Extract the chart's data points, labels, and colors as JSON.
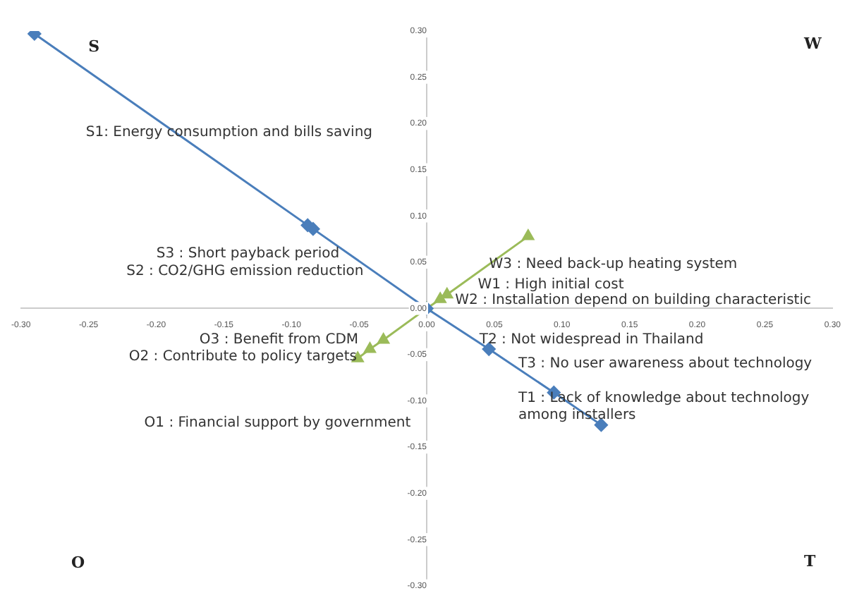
{
  "chart_data": {
    "type": "scatter",
    "series": [
      {
        "type": "line",
        "color": "#4a7ebb",
        "marker": "diamond",
        "x": [
          -0.29,
          -0.088,
          -0.084,
          0,
          0.046,
          0.094,
          0.129
        ],
        "values": [
          0.297,
          0.09,
          0.086,
          0,
          -0.044,
          -0.091,
          -0.126
        ]
      },
      {
        "type": "line",
        "color": "#9bbb59",
        "marker": "triangle",
        "x": [
          -0.051,
          -0.042,
          -0.032,
          0,
          0.01,
          0.015,
          0.075
        ],
        "values": [
          -0.054,
          -0.044,
          -0.034,
          0,
          0.01,
          0.015,
          0.078
        ]
      }
    ],
    "xlim": [
      -0.3,
      0.3
    ],
    "xticks": [
      {
        "value": -0.3,
        "label": "-0.30"
      },
      {
        "value": -0.25,
        "label": "-0.25"
      },
      {
        "value": -0.2,
        "label": "-0.20"
      },
      {
        "value": -0.15,
        "label": "-0.15"
      },
      {
        "value": -0.1,
        "label": "-0.10"
      },
      {
        "value": -0.05,
        "label": "-0.05"
      },
      {
        "value": 0,
        "label": "0.00"
      },
      {
        "value": 0.05,
        "label": "0.05"
      },
      {
        "value": 0.1,
        "label": "0.10"
      },
      {
        "value": 0.15,
        "label": "0.15"
      },
      {
        "value": 0.2,
        "label": "0.20"
      },
      {
        "value": 0.25,
        "label": "0.25"
      },
      {
        "value": 0.3,
        "label": "0.30"
      }
    ],
    "ylim": [
      -0.3,
      0.3
    ],
    "yticks": [
      {
        "value": -0.3,
        "label": "-0.30"
      },
      {
        "value": -0.25,
        "label": "-0.25"
      },
      {
        "value": -0.2,
        "label": "-0.20"
      },
      {
        "value": -0.15,
        "label": "-0.15"
      },
      {
        "value": -0.1,
        "label": "-0.10"
      },
      {
        "value": -0.05,
        "label": "-0.05"
      },
      {
        "value": 0,
        "label": "0.00"
      },
      {
        "value": 0.05,
        "label": "0.05"
      },
      {
        "value": 0.1,
        "label": "0.10"
      },
      {
        "value": 0.15,
        "label": "0.15"
      },
      {
        "value": 0.2,
        "label": "0.20"
      },
      {
        "value": 0.25,
        "label": "0.25"
      },
      {
        "value": 0.3,
        "label": "0.30"
      }
    ],
    "annotations": [
      "S",
      "W",
      "O",
      "T",
      "S1: Energy consumption and bills saving",
      "S3 : Short payback period",
      "S2 : CO2/GHG emission reduction",
      "W3 : Need back-up heating system",
      "W1 : High initial cost",
      "W2 : Installation depend on building characteristic",
      "O3 : Benefit from CDM",
      "O2 : Contribute to policy targets",
      "O1 : Financial support by government",
      "T2 : Not widespread in Thailand",
      "T3 : No user awareness about technology",
      "T1 : Lack of knowledge about technology\namong installers"
    ]
  }
}
